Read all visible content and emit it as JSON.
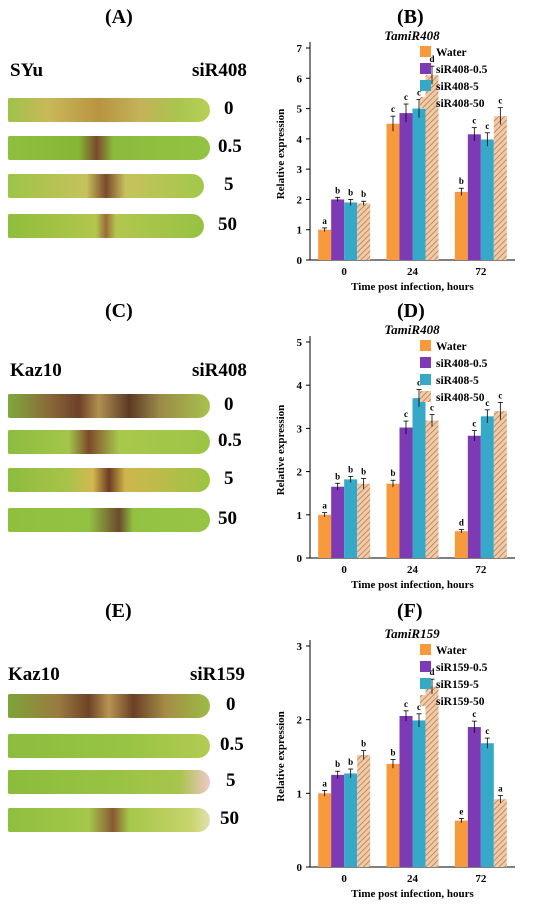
{
  "panel_labels": [
    "(A)",
    "(B)",
    "(C)",
    "(D)",
    "(E)",
    "(F)"
  ],
  "leaf_panels": [
    {
      "line": "SYu",
      "treatment": "siR408",
      "doses": [
        "0",
        "0.5",
        "5",
        "50"
      ]
    },
    {
      "line": "Kaz10",
      "treatment": "siR408",
      "doses": [
        "0",
        "0.5",
        "5",
        "50"
      ]
    },
    {
      "line": "Kaz10",
      "treatment": "siR159",
      "doses": [
        "0",
        "0.5",
        "5",
        "50"
      ]
    }
  ],
  "colors": {
    "water": "#f79a3e",
    "dose_low": "#7e3ab5",
    "dose_mid": "#36a9c9",
    "dose_high": "#f4c9a3",
    "hatch": "#9a7a5d"
  },
  "chart_data": [
    {
      "type": "bar",
      "title": "TamiR408",
      "xlabel": "Time post infection, hours",
      "ylabel": "Relative expression",
      "ylim": [
        0,
        7
      ],
      "yticks": [
        "0",
        "1",
        "2",
        "3",
        "4",
        "5",
        "6",
        "7"
      ],
      "categories": [
        "0",
        "24",
        "72"
      ],
      "legend_position": "top-right",
      "series": [
        {
          "name": "Water",
          "values": [
            1.0,
            4.5,
            2.25
          ],
          "errors": [
            0.06,
            0.25,
            0.12
          ],
          "letters": [
            "a",
            "c",
            "b"
          ]
        },
        {
          "name": "siR408-0.5",
          "values": [
            2.0,
            4.85,
            4.15
          ],
          "errors": [
            0.07,
            0.3,
            0.22
          ],
          "letters": [
            "b",
            "c",
            "c"
          ]
        },
        {
          "name": "siR408-5",
          "values": [
            1.9,
            5.0,
            3.98
          ],
          "errors": [
            0.1,
            0.3,
            0.22
          ],
          "letters": [
            "b",
            "c",
            "c"
          ]
        },
        {
          "name": "siR408-50",
          "values": [
            1.87,
            6.1,
            4.75
          ],
          "errors": [
            0.07,
            0.3,
            0.28
          ],
          "letters": [
            "b",
            "d",
            "c"
          ]
        }
      ]
    },
    {
      "type": "bar",
      "title": "TamiR408",
      "xlabel": "Time post infection, hours",
      "ylabel": "Relative expression",
      "ylim": [
        0,
        5
      ],
      "yticks": [
        "0",
        "1",
        "2",
        "3",
        "4",
        "5"
      ],
      "categories": [
        "0",
        "24",
        "72"
      ],
      "legend_position": "top-right",
      "series": [
        {
          "name": "Water",
          "values": [
            1.0,
            1.72,
            0.62
          ],
          "errors": [
            0.05,
            0.08,
            0.04
          ],
          "letters": [
            "a",
            "b",
            "d"
          ]
        },
        {
          "name": "siR408-0.5",
          "values": [
            1.65,
            3.02,
            2.83
          ],
          "errors": [
            0.08,
            0.15,
            0.12
          ],
          "letters": [
            "b",
            "c",
            "c"
          ]
        },
        {
          "name": "siR408-5",
          "values": [
            1.82,
            3.7,
            3.28
          ],
          "errors": [
            0.07,
            0.2,
            0.15
          ],
          "letters": [
            "b",
            "c",
            "c"
          ]
        },
        {
          "name": "siR408-50",
          "values": [
            1.72,
            3.18,
            3.4
          ],
          "errors": [
            0.12,
            0.14,
            0.2
          ],
          "letters": [
            "b",
            "c",
            "c"
          ]
        }
      ]
    },
    {
      "type": "bar",
      "title": "TamiR159",
      "xlabel": "Time post infection, hours",
      "ylabel": "Relative expression",
      "ylim": [
        0,
        3
      ],
      "yticks": [
        "0",
        "1",
        "2",
        "3"
      ],
      "categories": [
        "0",
        "24",
        "72"
      ],
      "legend_position": "top-right",
      "series": [
        {
          "name": "Water",
          "values": [
            1.0,
            1.4,
            0.63
          ],
          "errors": [
            0.04,
            0.06,
            0.03
          ],
          "letters": [
            "a",
            "b",
            "e"
          ]
        },
        {
          "name": "siR159-0.5",
          "values": [
            1.25,
            2.05,
            1.9
          ],
          "errors": [
            0.05,
            0.07,
            0.08
          ],
          "letters": [
            "b",
            "c",
            "c"
          ]
        },
        {
          "name": "siR159-5",
          "values": [
            1.27,
            1.99,
            1.68
          ],
          "errors": [
            0.06,
            0.09,
            0.07
          ],
          "letters": [
            "b",
            "c",
            "c"
          ]
        },
        {
          "name": "siR159-50",
          "values": [
            1.52,
            2.45,
            0.92
          ],
          "errors": [
            0.06,
            0.1,
            0.05
          ],
          "letters": [
            "b",
            "d",
            "a"
          ]
        }
      ]
    }
  ]
}
